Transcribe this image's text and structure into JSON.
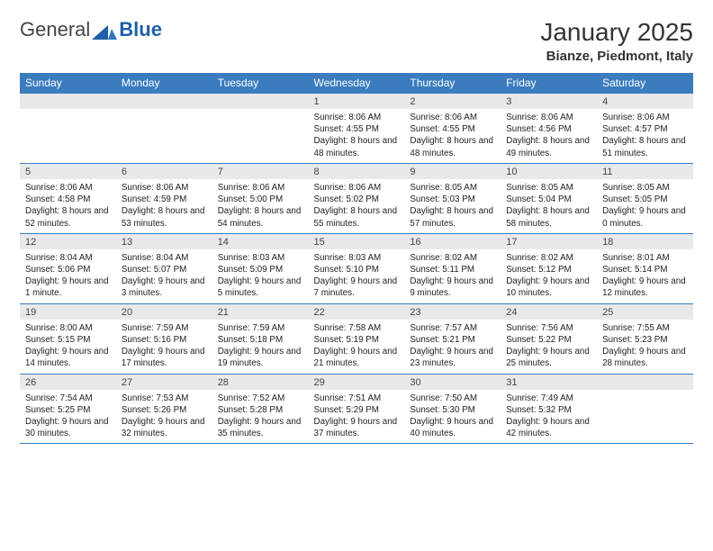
{
  "logo": {
    "text1": "General",
    "text2": "Blue"
  },
  "title": "January 2025",
  "location": "Bianze, Piedmont, Italy",
  "colors": {
    "header_bg": "#3b7cbf",
    "daynum_bg": "#e8e9ea",
    "rule": "#3b7cbf"
  },
  "weekdays": [
    "Sunday",
    "Monday",
    "Tuesday",
    "Wednesday",
    "Thursday",
    "Friday",
    "Saturday"
  ],
  "weeks": [
    [
      null,
      null,
      null,
      {
        "n": "1",
        "sr": "8:06 AM",
        "ss": "4:55 PM",
        "dl": "8 hours and 48 minutes."
      },
      {
        "n": "2",
        "sr": "8:06 AM",
        "ss": "4:55 PM",
        "dl": "8 hours and 48 minutes."
      },
      {
        "n": "3",
        "sr": "8:06 AM",
        "ss": "4:56 PM",
        "dl": "8 hours and 49 minutes."
      },
      {
        "n": "4",
        "sr": "8:06 AM",
        "ss": "4:57 PM",
        "dl": "8 hours and 51 minutes."
      }
    ],
    [
      {
        "n": "5",
        "sr": "8:06 AM",
        "ss": "4:58 PM",
        "dl": "8 hours and 52 minutes."
      },
      {
        "n": "6",
        "sr": "8:06 AM",
        "ss": "4:59 PM",
        "dl": "8 hours and 53 minutes."
      },
      {
        "n": "7",
        "sr": "8:06 AM",
        "ss": "5:00 PM",
        "dl": "8 hours and 54 minutes."
      },
      {
        "n": "8",
        "sr": "8:06 AM",
        "ss": "5:02 PM",
        "dl": "8 hours and 55 minutes."
      },
      {
        "n": "9",
        "sr": "8:05 AM",
        "ss": "5:03 PM",
        "dl": "8 hours and 57 minutes."
      },
      {
        "n": "10",
        "sr": "8:05 AM",
        "ss": "5:04 PM",
        "dl": "8 hours and 58 minutes."
      },
      {
        "n": "11",
        "sr": "8:05 AM",
        "ss": "5:05 PM",
        "dl": "9 hours and 0 minutes."
      }
    ],
    [
      {
        "n": "12",
        "sr": "8:04 AM",
        "ss": "5:06 PM",
        "dl": "9 hours and 1 minute."
      },
      {
        "n": "13",
        "sr": "8:04 AM",
        "ss": "5:07 PM",
        "dl": "9 hours and 3 minutes."
      },
      {
        "n": "14",
        "sr": "8:03 AM",
        "ss": "5:09 PM",
        "dl": "9 hours and 5 minutes."
      },
      {
        "n": "15",
        "sr": "8:03 AM",
        "ss": "5:10 PM",
        "dl": "9 hours and 7 minutes."
      },
      {
        "n": "16",
        "sr": "8:02 AM",
        "ss": "5:11 PM",
        "dl": "9 hours and 9 minutes."
      },
      {
        "n": "17",
        "sr": "8:02 AM",
        "ss": "5:12 PM",
        "dl": "9 hours and 10 minutes."
      },
      {
        "n": "18",
        "sr": "8:01 AM",
        "ss": "5:14 PM",
        "dl": "9 hours and 12 minutes."
      }
    ],
    [
      {
        "n": "19",
        "sr": "8:00 AM",
        "ss": "5:15 PM",
        "dl": "9 hours and 14 minutes."
      },
      {
        "n": "20",
        "sr": "7:59 AM",
        "ss": "5:16 PM",
        "dl": "9 hours and 17 minutes."
      },
      {
        "n": "21",
        "sr": "7:59 AM",
        "ss": "5:18 PM",
        "dl": "9 hours and 19 minutes."
      },
      {
        "n": "22",
        "sr": "7:58 AM",
        "ss": "5:19 PM",
        "dl": "9 hours and 21 minutes."
      },
      {
        "n": "23",
        "sr": "7:57 AM",
        "ss": "5:21 PM",
        "dl": "9 hours and 23 minutes."
      },
      {
        "n": "24",
        "sr": "7:56 AM",
        "ss": "5:22 PM",
        "dl": "9 hours and 25 minutes."
      },
      {
        "n": "25",
        "sr": "7:55 AM",
        "ss": "5:23 PM",
        "dl": "9 hours and 28 minutes."
      }
    ],
    [
      {
        "n": "26",
        "sr": "7:54 AM",
        "ss": "5:25 PM",
        "dl": "9 hours and 30 minutes."
      },
      {
        "n": "27",
        "sr": "7:53 AM",
        "ss": "5:26 PM",
        "dl": "9 hours and 32 minutes."
      },
      {
        "n": "28",
        "sr": "7:52 AM",
        "ss": "5:28 PM",
        "dl": "9 hours and 35 minutes."
      },
      {
        "n": "29",
        "sr": "7:51 AM",
        "ss": "5:29 PM",
        "dl": "9 hours and 37 minutes."
      },
      {
        "n": "30",
        "sr": "7:50 AM",
        "ss": "5:30 PM",
        "dl": "9 hours and 40 minutes."
      },
      {
        "n": "31",
        "sr": "7:49 AM",
        "ss": "5:32 PM",
        "dl": "9 hours and 42 minutes."
      },
      null
    ]
  ],
  "labels": {
    "sunrise": "Sunrise: ",
    "sunset": "Sunset: ",
    "daylight": "Daylight: "
  }
}
